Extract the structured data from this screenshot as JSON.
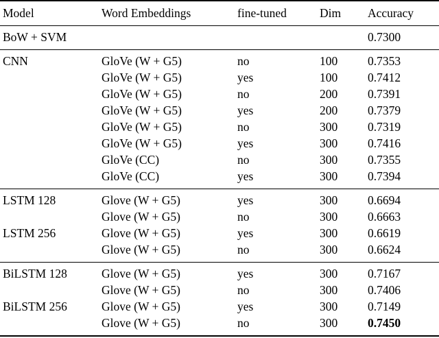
{
  "page": {
    "background_color": "#ffffff",
    "text_color": "#000000"
  },
  "table": {
    "columns": [
      "Model",
      "Word Embeddings",
      "fine-tuned",
      "Dim",
      "Accuracy"
    ],
    "sections": [
      {
        "rows": [
          {
            "model": "BoW + SVM",
            "embeddings": "",
            "fine_tuned": "",
            "dim": "",
            "accuracy": "0.7300",
            "accuracy_bold": false
          }
        ]
      },
      {
        "rows": [
          {
            "model": "CNN",
            "embeddings": "GloVe (W + G5)",
            "fine_tuned": "no",
            "dim": "100",
            "accuracy": "0.7353",
            "accuracy_bold": false
          },
          {
            "model": "",
            "embeddings": "GloVe (W + G5)",
            "fine_tuned": "yes",
            "dim": "100",
            "accuracy": "0.7412",
            "accuracy_bold": false
          },
          {
            "model": "",
            "embeddings": "GloVe (W + G5)",
            "fine_tuned": "no",
            "dim": "200",
            "accuracy": "0.7391",
            "accuracy_bold": false
          },
          {
            "model": "",
            "embeddings": "GloVe (W + G5)",
            "fine_tuned": "yes",
            "dim": "200",
            "accuracy": "0.7379",
            "accuracy_bold": false
          },
          {
            "model": "",
            "embeddings": "GloVe (W + G5)",
            "fine_tuned": "no",
            "dim": "300",
            "accuracy": "0.7319",
            "accuracy_bold": false
          },
          {
            "model": "",
            "embeddings": "GloVe (W + G5)",
            "fine_tuned": "yes",
            "dim": "300",
            "accuracy": "0.7416",
            "accuracy_bold": false
          },
          {
            "model": "",
            "embeddings": "GloVe (CC)",
            "fine_tuned": "no",
            "dim": "300",
            "accuracy": "0.7355",
            "accuracy_bold": false
          },
          {
            "model": "",
            "embeddings": "GloVe (CC)",
            "fine_tuned": "yes",
            "dim": "300",
            "accuracy": "0.7394",
            "accuracy_bold": false
          }
        ]
      },
      {
        "rows": [
          {
            "model": "LSTM 128",
            "embeddings": "Glove (W + G5)",
            "fine_tuned": "yes",
            "dim": "300",
            "accuracy": "0.6694",
            "accuracy_bold": false
          },
          {
            "model": "",
            "embeddings": "Glove (W + G5)",
            "fine_tuned": "no",
            "dim": "300",
            "accuracy": "0.6663",
            "accuracy_bold": false
          },
          {
            "model": "LSTM 256",
            "embeddings": "Glove (W + G5)",
            "fine_tuned": "yes",
            "dim": "300",
            "accuracy": "0.6619",
            "accuracy_bold": false
          },
          {
            "model": "",
            "embeddings": "Glove (W + G5)",
            "fine_tuned": "no",
            "dim": "300",
            "accuracy": "0.6624",
            "accuracy_bold": false
          }
        ]
      },
      {
        "rows": [
          {
            "model": "BiLSTM 128",
            "embeddings": "Glove (W + G5)",
            "fine_tuned": "yes",
            "dim": "300",
            "accuracy": "0.7167",
            "accuracy_bold": false
          },
          {
            "model": "",
            "embeddings": "Glove (W + G5)",
            "fine_tuned": "no",
            "dim": "300",
            "accuracy": "0.7406",
            "accuracy_bold": false
          },
          {
            "model": "BiLSTM 256",
            "embeddings": "Glove (W + G5)",
            "fine_tuned": "yes",
            "dim": "300",
            "accuracy": "0.7149",
            "accuracy_bold": false
          },
          {
            "model": "",
            "embeddings": "Glove (W + G5)",
            "fine_tuned": "no",
            "dim": "300",
            "accuracy": "0.7450",
            "accuracy_bold": true
          }
        ]
      }
    ]
  }
}
